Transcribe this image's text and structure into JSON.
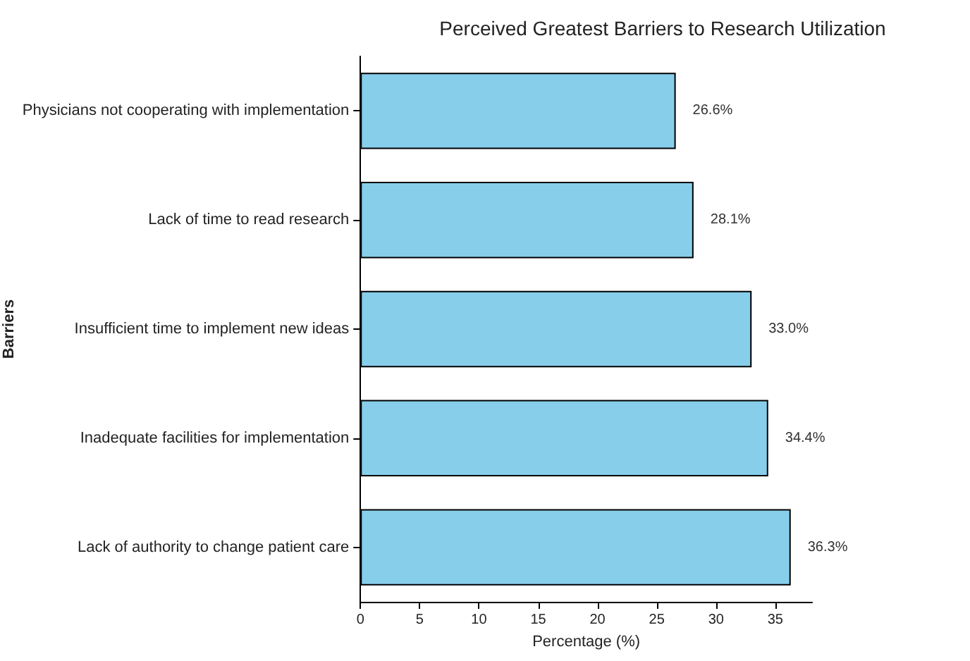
{
  "chart_data": {
    "type": "bar",
    "orientation": "horizontal",
    "title": "Perceived Greatest Barriers to Research Utilization",
    "xlabel": "Percentage (%)",
    "ylabel": "Barriers",
    "categories": [
      "Physicians not cooperating with implementation",
      "Lack of time to read research",
      "Insufficient time to implement new ideas",
      "Inadequate facilities for implementation",
      "Lack of authority to change patient care"
    ],
    "values": [
      26.6,
      28.1,
      33.0,
      34.4,
      36.3
    ],
    "value_labels": [
      "26.6%",
      "28.1%",
      "33.0%",
      "34.4%",
      "36.3%"
    ],
    "color": "#87ceeb",
    "xlim": [
      0,
      38.1
    ],
    "xticks": [
      0,
      5,
      10,
      15,
      20,
      25,
      30,
      35
    ],
    "grid": false
  }
}
